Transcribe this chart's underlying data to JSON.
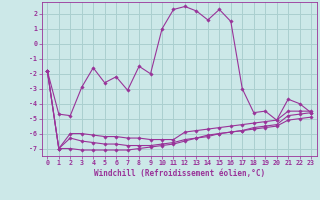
{
  "xlabel": "Windchill (Refroidissement éolien,°C)",
  "bg_color": "#cce8e8",
  "grid_color": "#aacfcf",
  "line_color": "#993399",
  "xlim": [
    -0.5,
    23.5
  ],
  "ylim": [
    -7.5,
    2.8
  ],
  "yticks": [
    2,
    1,
    0,
    -1,
    -2,
    -3,
    -4,
    -5,
    -6,
    -7
  ],
  "xticks": [
    0,
    1,
    2,
    3,
    4,
    5,
    6,
    7,
    8,
    9,
    10,
    11,
    12,
    13,
    14,
    15,
    16,
    17,
    18,
    19,
    20,
    21,
    22,
    23
  ],
  "line1_x": [
    0,
    1,
    2,
    3,
    4,
    5,
    6,
    7,
    8,
    9,
    10,
    11,
    12,
    13,
    14,
    15,
    16,
    17,
    18,
    19,
    20,
    21,
    22,
    23
  ],
  "line1_y": [
    -1.8,
    -4.7,
    -4.8,
    -2.9,
    -1.6,
    -2.6,
    -2.2,
    -3.1,
    -1.5,
    -2.0,
    1.0,
    2.3,
    2.5,
    2.2,
    1.6,
    2.3,
    1.5,
    -3.0,
    -4.6,
    -4.5,
    -5.1,
    -3.7,
    -4.0,
    -4.6
  ],
  "line2_x": [
    0,
    1,
    2,
    3,
    4,
    5,
    6,
    7,
    8,
    9,
    10,
    11,
    12,
    13,
    14,
    15,
    16,
    17,
    18,
    19,
    20,
    21,
    22,
    23
  ],
  "line2_y": [
    -1.8,
    -7.0,
    -6.0,
    -6.0,
    -6.1,
    -6.2,
    -6.2,
    -6.3,
    -6.3,
    -6.4,
    -6.4,
    -6.4,
    -5.9,
    -5.8,
    -5.7,
    -5.6,
    -5.5,
    -5.4,
    -5.3,
    -5.2,
    -5.1,
    -4.5,
    -4.5,
    -4.5
  ],
  "line3_x": [
    0,
    1,
    2,
    3,
    4,
    5,
    6,
    7,
    8,
    9,
    10,
    11,
    12,
    13,
    14,
    15,
    16,
    17,
    18,
    19,
    20,
    21,
    22,
    23
  ],
  "line3_y": [
    -1.8,
    -7.0,
    -6.3,
    -6.5,
    -6.6,
    -6.7,
    -6.7,
    -6.8,
    -6.8,
    -6.8,
    -6.7,
    -6.6,
    -6.4,
    -6.3,
    -6.1,
    -6.0,
    -5.9,
    -5.8,
    -5.7,
    -5.6,
    -5.5,
    -5.1,
    -5.0,
    -4.9
  ],
  "line4_x": [
    0,
    1,
    2,
    3,
    4,
    5,
    6,
    7,
    8,
    9,
    10,
    11,
    12,
    13,
    14,
    15,
    16,
    17,
    18,
    19,
    20,
    21,
    22,
    23
  ],
  "line4_y": [
    -1.8,
    -7.0,
    -7.0,
    -7.1,
    -7.1,
    -7.1,
    -7.1,
    -7.1,
    -7.0,
    -6.9,
    -6.8,
    -6.7,
    -6.5,
    -6.3,
    -6.2,
    -6.0,
    -5.9,
    -5.8,
    -5.6,
    -5.5,
    -5.4,
    -4.8,
    -4.7,
    -4.6
  ],
  "xlabel_fontsize": 5.5,
  "tick_fontsize": 4.8
}
